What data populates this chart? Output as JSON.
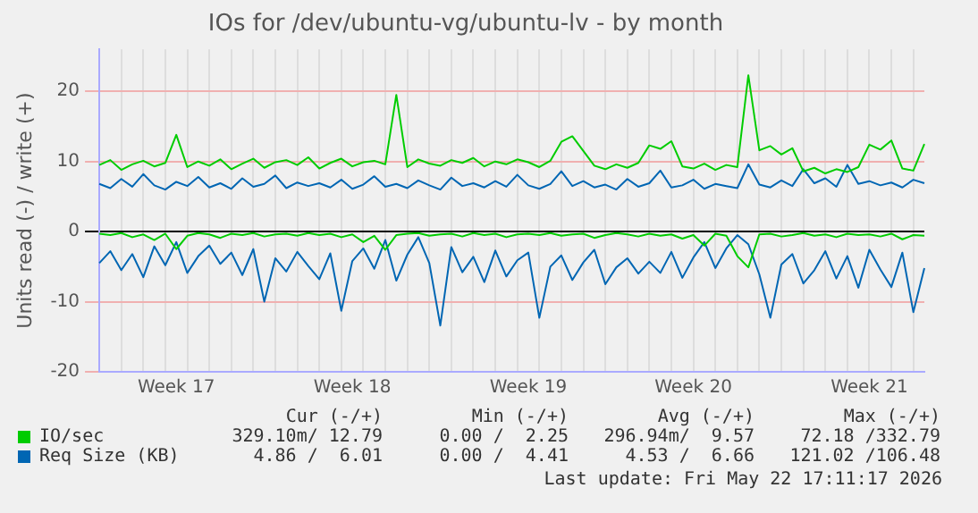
{
  "chart_data": {
    "type": "line",
    "title": "IOs for /dev/ubuntu-vg/ubuntu-lv - by month",
    "ylabel": "Units read (-) / write (+)",
    "categories": [
      null,
      null,
      null,
      null,
      null,
      null,
      null,
      "Week 17",
      null,
      null,
      null,
      null,
      null,
      null,
      null,
      null,
      null,
      null,
      null,
      null,
      null,
      null,
      null,
      "Week 18",
      null,
      null,
      null,
      null,
      null,
      null,
      null,
      null,
      null,
      null,
      null,
      null,
      null,
      null,
      null,
      "Week 19",
      null,
      null,
      null,
      null,
      null,
      null,
      null,
      null,
      null,
      null,
      null,
      null,
      null,
      null,
      "Week 20",
      null,
      null,
      null,
      null,
      null,
      null,
      null,
      null,
      null,
      null,
      null,
      null,
      null,
      null,
      null,
      "Week 21",
      null,
      null,
      null,
      null,
      null
    ],
    "ylim": [
      -20,
      26
    ],
    "yticks": [
      -20,
      -10,
      0,
      10,
      20
    ],
    "grid": true,
    "legend": "bottom",
    "marker": "none",
    "line_style": "solid",
    "series": [
      {
        "name": "IO/sec",
        "color": "#00cc00",
        "values": [
          9.5,
          10.2,
          8.8,
          9.6,
          10.1,
          9.3,
          9.8,
          13.8,
          9.2,
          10.0,
          9.4,
          10.3,
          8.9,
          9.7,
          10.4,
          9.1,
          9.9,
          10.2,
          9.5,
          10.6,
          9.0,
          9.8,
          10.4,
          9.3,
          9.9,
          10.1,
          9.6,
          19.5,
          9.2,
          10.3,
          9.7,
          9.4,
          10.2,
          9.8,
          10.5,
          9.3,
          10.0,
          9.6,
          10.3,
          9.9,
          9.2,
          10.1,
          12.8,
          13.6,
          11.5,
          9.4,
          8.9,
          9.6,
          9.1,
          9.8,
          12.3,
          11.8,
          12.9,
          9.3,
          9.0,
          9.7,
          8.8,
          9.5,
          9.2,
          22.3,
          11.6,
          12.2,
          11.0,
          11.9,
          8.6,
          9.1,
          8.3,
          8.9,
          8.5,
          9.2,
          12.4,
          11.7,
          13.0,
          9.0,
          8.7,
          12.5
        ]
      },
      {
        "color": "#00cc00",
        "values": [
          -0.3,
          -0.5,
          -0.2,
          -0.8,
          -0.4,
          -1.2,
          -0.3,
          -2.5,
          -0.6,
          -0.2,
          -0.4,
          -0.9,
          -0.3,
          -0.5,
          -0.2,
          -0.7,
          -0.4,
          -0.3,
          -0.6,
          -0.2,
          -0.5,
          -0.3,
          -0.8,
          -0.4,
          -1.5,
          -0.6,
          -2.6,
          -0.5,
          -0.3,
          -0.2,
          -0.6,
          -0.4,
          -0.3,
          -0.7,
          -0.2,
          -0.5,
          -0.3,
          -0.8,
          -0.4,
          -0.3,
          -0.5,
          -0.2,
          -0.6,
          -0.4,
          -0.3,
          -0.9,
          -0.5,
          -0.2,
          -0.4,
          -0.7,
          -0.3,
          -0.6,
          -0.4,
          -1.0,
          -0.5,
          -2.0,
          -0.3,
          -0.6,
          -3.5,
          -5.1,
          -0.4,
          -0.3,
          -0.7,
          -0.5,
          -0.2,
          -0.6,
          -0.4,
          -0.8,
          -0.3,
          -0.5,
          -0.4,
          -0.7,
          -0.3,
          -1.1,
          -0.5,
          -0.6
        ]
      },
      {
        "name": "Req Size (KB)",
        "color": "#0066b3",
        "values": [
          6.8,
          6.2,
          7.5,
          6.4,
          8.2,
          6.6,
          6.0,
          7.1,
          6.5,
          7.8,
          6.3,
          6.9,
          6.1,
          7.6,
          6.4,
          6.8,
          8.0,
          6.2,
          7.0,
          6.5,
          6.9,
          6.3,
          7.4,
          6.1,
          6.7,
          7.9,
          6.4,
          6.8,
          6.2,
          7.3,
          6.6,
          6.0,
          7.7,
          6.5,
          6.9,
          6.3,
          7.2,
          6.4,
          8.1,
          6.6,
          6.1,
          6.8,
          8.6,
          6.5,
          7.2,
          6.3,
          6.7,
          6.0,
          7.5,
          6.4,
          6.9,
          8.7,
          6.3,
          6.6,
          7.4,
          6.1,
          6.8,
          6.5,
          6.2,
          9.6,
          6.7,
          6.3,
          7.3,
          6.5,
          8.9,
          6.9,
          7.6,
          6.4,
          9.5,
          6.8,
          7.2,
          6.6,
          7.0,
          6.3,
          7.4,
          6.9
        ]
      },
      {
        "color": "#0066b3",
        "values": [
          -4.5,
          -2.8,
          -5.5,
          -3.2,
          -6.5,
          -2.1,
          -4.8,
          -1.5,
          -5.9,
          -3.5,
          -2.0,
          -4.6,
          -3.0,
          -6.2,
          -2.5,
          -10.0,
          -3.8,
          -5.7,
          -2.9,
          -4.9,
          -6.8,
          -3.1,
          -11.3,
          -4.2,
          -2.4,
          -5.3,
          -1.2,
          -7.0,
          -3.3,
          -0.8,
          -4.5,
          -13.4,
          -2.2,
          -5.8,
          -3.6,
          -7.2,
          -2.7,
          -6.4,
          -4.1,
          -3.0,
          -12.3,
          -5.0,
          -3.4,
          -6.9,
          -4.4,
          -2.6,
          -7.5,
          -5.1,
          -3.8,
          -6.0,
          -4.3,
          -5.9,
          -2.9,
          -6.6,
          -3.7,
          -1.5,
          -5.2,
          -2.4,
          -0.5,
          -1.8,
          -6.1,
          -12.3,
          -4.7,
          -3.2,
          -7.4,
          -5.5,
          -2.8,
          -6.7,
          -3.5,
          -8.0,
          -2.6,
          -5.4,
          -7.9,
          -3.0,
          -11.5,
          -5.2
        ]
      }
    ],
    "annotations": [
      "Cur (-/+)",
      "Min (-/+)",
      "Avg (-/+)",
      "Max (-/+)",
      "329.10m/ 12.79",
      "0.00 /  2.25",
      "296.94m/  9.57",
      "72.18 /332.79",
      "4.86 /  6.01",
      "0.00 /  4.41",
      "4.53 /  6.66",
      "121.02 /106.48",
      "Last update: Fri May 22 17:11:17 2026"
    ]
  }
}
